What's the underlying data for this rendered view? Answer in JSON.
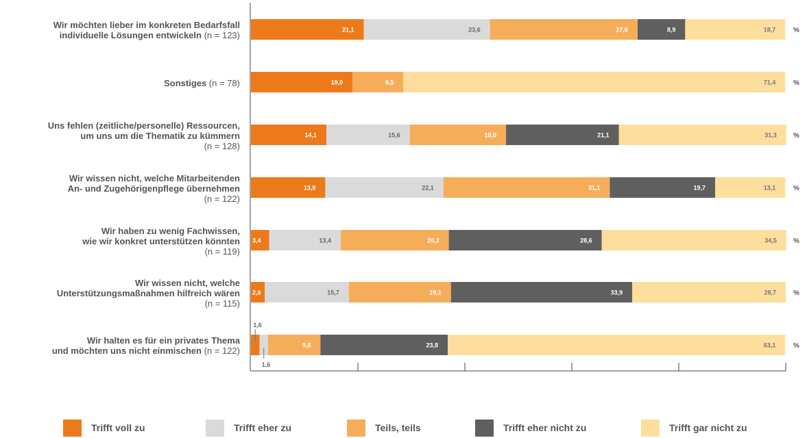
{
  "colors": {
    "trifft_voll_zu": "#ED7A1A",
    "trifft_eher_zu": "#DADADA",
    "teils_teils": "#F6AD5A",
    "trifft_eher_nicht_zu": "#5F5F5F",
    "trifft_gar_nicht_zu": "#FDDE9C"
  },
  "unit_label": "%",
  "categories": [
    {
      "lines": [
        "Wir möchten lieber im konkreten Bedarfsfall",
        "individuelle Lösungen entwickeln"
      ],
      "n_text": "(n = 123)",
      "n_inline": true
    },
    {
      "lines": [
        "Sonstiges"
      ],
      "n_text": "(n = 78)",
      "n_inline": true
    },
    {
      "lines": [
        "Uns fehlen (zeitliche/personelle) Ressourcen,",
        "um uns um die Thematik zu kümmern"
      ],
      "n_text": "(n = 128)",
      "n_inline": false
    },
    {
      "lines": [
        "Wir wissen nicht, welche Mitarbeitenden",
        "An- und Zugehörigenpflege übernehmen"
      ],
      "n_text": "(n = 122)",
      "n_inline": false
    },
    {
      "lines": [
        "Wir haben zu wenig Fachwissen,",
        "wie wir konkret unterstützen könnten"
      ],
      "n_text": "(n = 119)",
      "n_inline": false
    },
    {
      "lines": [
        "Wir wissen nicht, welche",
        "Unterstützungsmaßnahmen hilfreich wären"
      ],
      "n_text": "(n = 115)",
      "n_inline": false
    },
    {
      "lines": [
        "Wir halten es für ein privates Thema",
        "und möchten uns nicht einmischen"
      ],
      "n_text": "(n = 122)",
      "n_inline": true
    }
  ],
  "chart_data": {
    "type": "bar",
    "orientation": "horizontal-stacked-100",
    "unit": "%",
    "categories": [
      "Wir möchten lieber im konkreten Bedarfsfall individuelle Lösungen entwickeln (n = 123)",
      "Sonstiges (n = 78)",
      "Uns fehlen (zeitliche/personelle) Ressourcen, um uns um die Thematik zu kümmern (n = 128)",
      "Wir wissen nicht, welche Mitarbeitenden An- und Zugehörigenpflege übernehmen (n = 122)",
      "Wir haben zu wenig Fachwissen, wie wir konkret unterstützen könnten (n = 119)",
      "Wir wissen nicht, welche Unterstützungsmaßnahmen hilfreich wären (n = 115)",
      "Wir halten es für ein privates Thema und möchten uns nicht einmischen (n = 122)"
    ],
    "xlim": [
      0,
      100
    ],
    "grid": false,
    "legend_position": "bottom",
    "series": [
      {
        "name": "Trifft voll zu",
        "values": [
          21.1,
          19.0,
          14.1,
          13.9,
          3.4,
          2.6,
          1.6
        ],
        "labels": [
          "21,1",
          "19,0",
          "14,1",
          "13,9",
          "3,4",
          "2,6",
          "1,6"
        ]
      },
      {
        "name": "Trifft eher zu",
        "values": [
          23.6,
          0,
          15.6,
          22.1,
          13.4,
          15.7,
          1.6
        ],
        "labels": [
          "23,6",
          "",
          "15,6",
          "22,1",
          "13,4",
          "15,7",
          "1,6"
        ]
      },
      {
        "name": "Teils, teils",
        "values": [
          27.6,
          9.5,
          18.0,
          31.1,
          20.2,
          19.1,
          9.8
        ],
        "labels": [
          "27,6",
          "9,5",
          "18,0",
          "31,1",
          "20,2",
          "19,1",
          "9,8"
        ]
      },
      {
        "name": "Trifft eher nicht zu",
        "values": [
          8.9,
          0,
          21.1,
          19.7,
          28.6,
          33.9,
          23.8
        ],
        "labels": [
          "8,9",
          "",
          "21,1",
          "19,7",
          "28,6",
          "33,9",
          "23,8"
        ]
      },
      {
        "name": "Trifft gar nicht zu",
        "values": [
          18.7,
          71.4,
          31.3,
          13.1,
          34.5,
          28.7,
          63.1
        ],
        "labels": [
          "18,7",
          "71,4",
          "31,3",
          "13,1",
          "34,5",
          "28,7",
          "63,1"
        ]
      }
    ]
  },
  "legend": [
    {
      "label": "Trifft voll zu",
      "color_key": "trifft_voll_zu"
    },
    {
      "label": "Trifft eher zu",
      "color_key": "trifft_eher_zu"
    },
    {
      "label": "Teils, teils",
      "color_key": "teils_teils"
    },
    {
      "label": "Trifft eher nicht zu",
      "color_key": "trifft_eher_nicht_zu"
    },
    {
      "label": "Trifft gar nicht zu",
      "color_key": "trifft_gar_nicht_zu"
    }
  ]
}
